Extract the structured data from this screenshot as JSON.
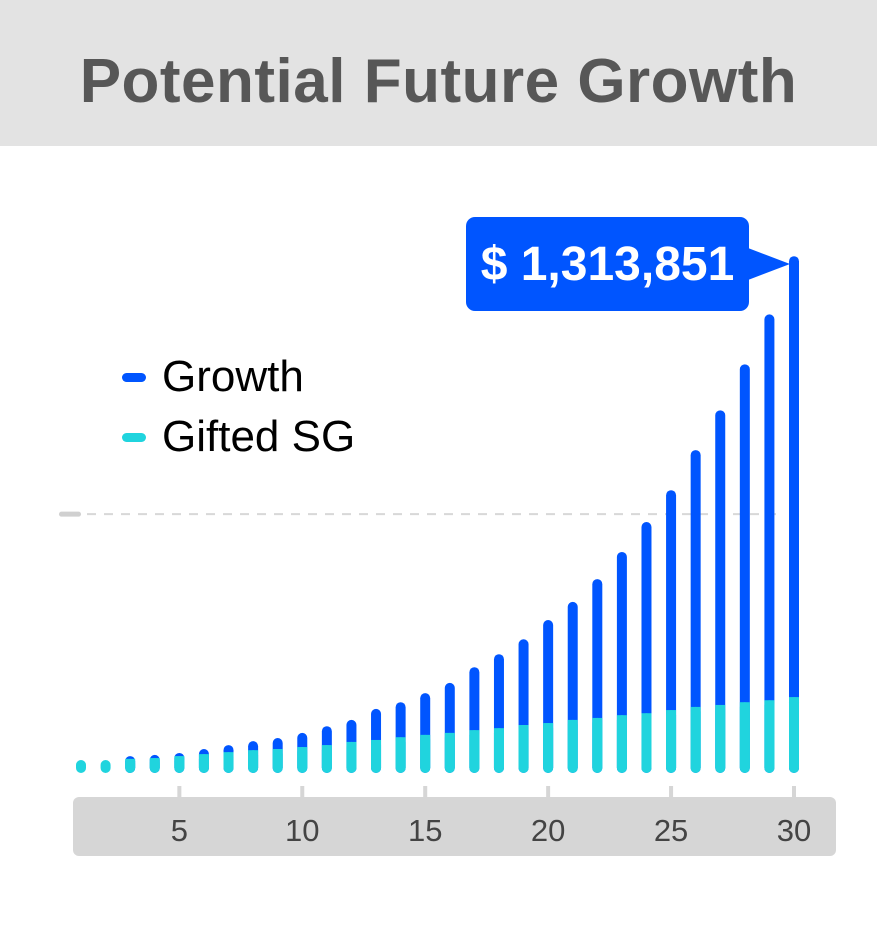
{
  "chart_data": {
    "type": "bar",
    "stacked": true,
    "title": "Potential Future Growth",
    "categories": [
      1,
      2,
      3,
      4,
      5,
      6,
      7,
      8,
      9,
      10,
      11,
      12,
      13,
      14,
      15,
      16,
      17,
      18,
      19,
      20,
      21,
      22,
      23,
      24,
      25,
      26,
      27,
      28,
      29,
      30
    ],
    "x_tick_labels": [
      "5",
      "10",
      "15",
      "20",
      "25",
      "30"
    ],
    "x_ticks": [
      5,
      10,
      15,
      20,
      25,
      30
    ],
    "ylim": [
      0,
      1500000
    ],
    "grid": false,
    "reference_line": 658000,
    "legend_position": "top-left",
    "series": [
      {
        "name": "Gifted SG",
        "color": "#20d4de",
        "values": [
          33000,
          33000,
          36000,
          38000,
          43000,
          48000,
          53000,
          58000,
          61000,
          66000,
          71000,
          79000,
          84000,
          91000,
          97000,
          102000,
          109000,
          114000,
          122000,
          127000,
          135000,
          140000,
          147000,
          152000,
          160000,
          168000,
          173000,
          180000,
          185000,
          193000
        ]
      },
      {
        "name": "Growth",
        "color": "#0055ff",
        "values": [
          0,
          0,
          7000,
          8000,
          8000,
          13000,
          18000,
          23000,
          28000,
          36000,
          48000,
          56000,
          79000,
          89000,
          106000,
          127000,
          160000,
          188000,
          218000,
          262000,
          300000,
          353000,
          415000,
          486000,
          559000,
          653000,
          749000,
          859000,
          981000,
          1120851
        ]
      }
    ],
    "annotation": {
      "label": "$ 1,313,851",
      "category": 30
    }
  },
  "legend": [
    {
      "label": "Growth",
      "color": "#0055ff"
    },
    {
      "label": "Gifted SG",
      "color": "#20d4de"
    }
  ]
}
